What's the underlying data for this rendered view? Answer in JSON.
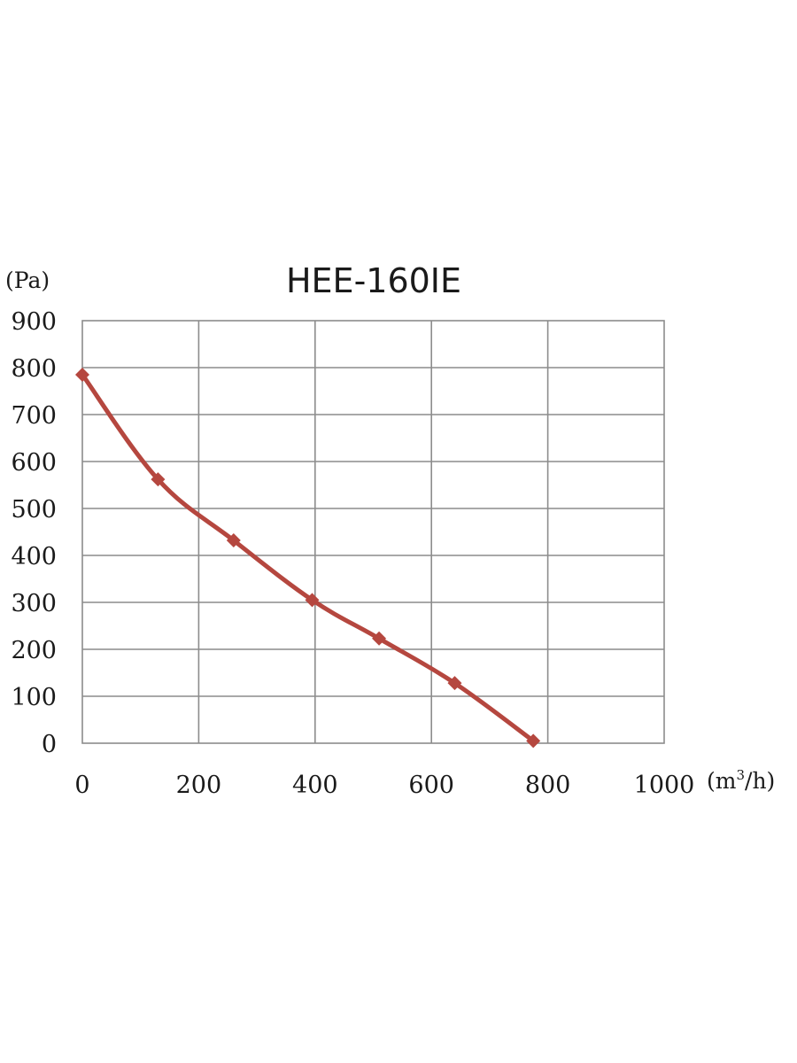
{
  "chart_data": {
    "type": "line",
    "title": "HEE-160IE",
    "ylabel": "(Pa)",
    "xlabel_prefix": "(m",
    "xlabel_sup": "3",
    "xlabel_suffix": "/h)",
    "xlim": [
      0,
      1000
    ],
    "ylim": [
      0,
      900
    ],
    "x_ticks": [
      "0",
      "200",
      "400",
      "600",
      "800",
      "1000"
    ],
    "y_ticks": [
      "0",
      "100",
      "200",
      "300",
      "400",
      "500",
      "600",
      "700",
      "800",
      "900"
    ],
    "grid": true,
    "series": [
      {
        "color": "#b5473f",
        "marker": "diamond",
        "points": [
          {
            "x": 0,
            "y": 785
          },
          {
            "x": 130,
            "y": 562
          },
          {
            "x": 260,
            "y": 432
          },
          {
            "x": 395,
            "y": 305
          },
          {
            "x": 510,
            "y": 223
          },
          {
            "x": 640,
            "y": 128
          },
          {
            "x": 775,
            "y": 5
          }
        ]
      }
    ]
  }
}
